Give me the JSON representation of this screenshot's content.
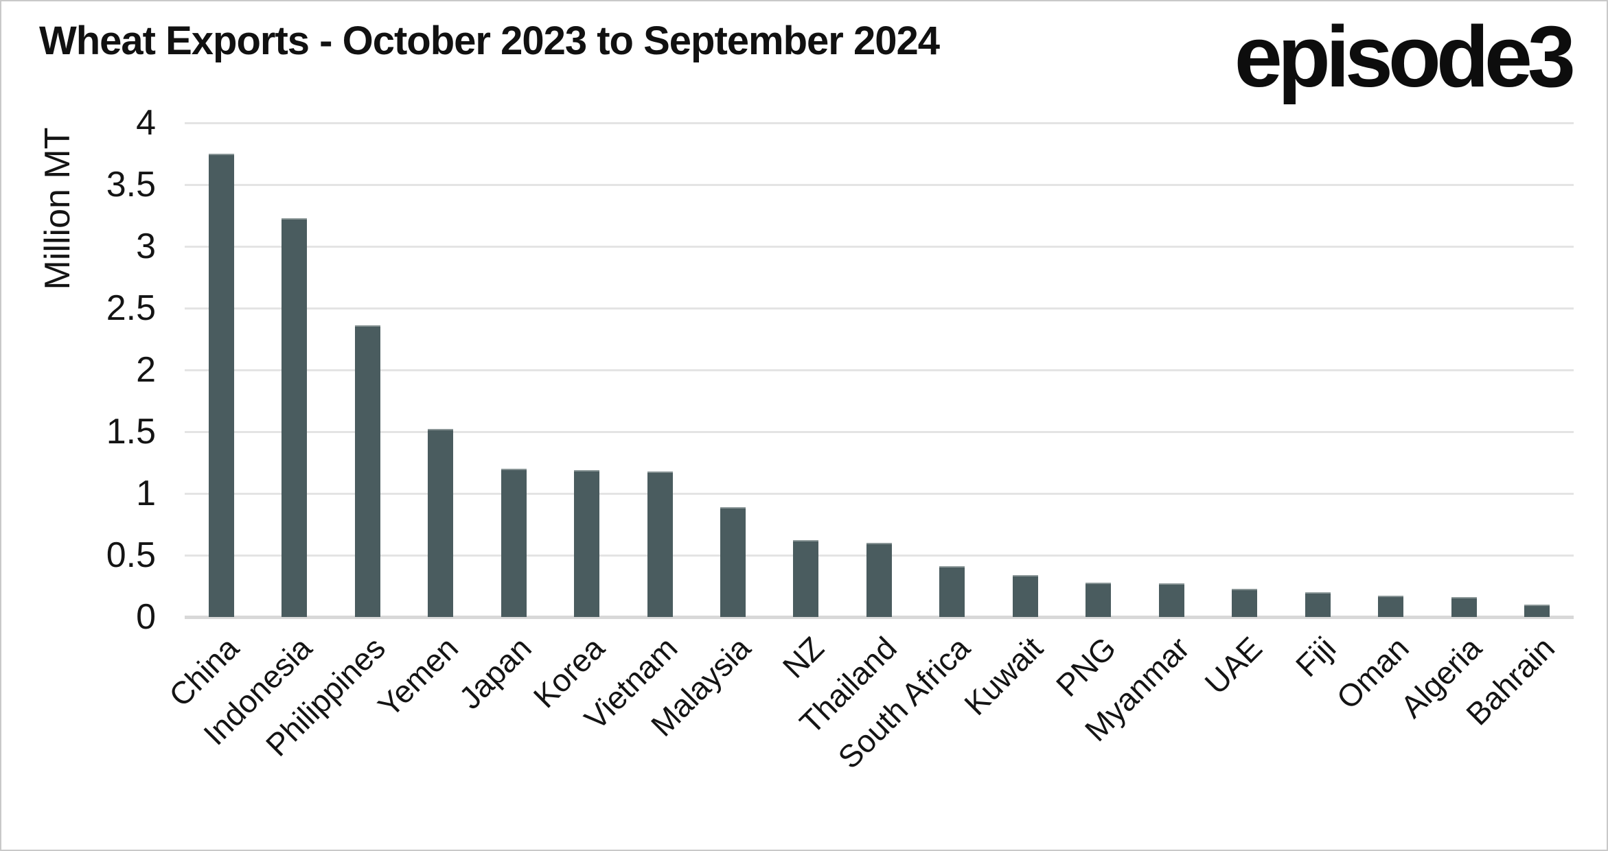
{
  "header": {
    "title": "Wheat Exports - October 2023 to September 2024",
    "logo_text": "episode3"
  },
  "chart_data": {
    "type": "bar",
    "title": "Wheat Exports - October 2023 to September 2024",
    "xlabel": "",
    "ylabel": "Million MT",
    "ylim": [
      0,
      4
    ],
    "ytick_step": 0.5,
    "yticks": [
      "4",
      "3.5",
      "3",
      "2.5",
      "2",
      "1.5",
      "1",
      "0.5",
      "0"
    ],
    "grid": "horizontal-only",
    "legend_position": "none",
    "categories": [
      "China",
      "Indonesia",
      "Philippines",
      "Yemen",
      "Japan",
      "Korea",
      "Vietnam",
      "Malaysia",
      "NZ",
      "Thailand",
      "South Africa",
      "Kuwait",
      "PNG",
      "Myanmar",
      "UAE",
      "Fiji",
      "Oman",
      "Algeria",
      "Bahrain"
    ],
    "values": [
      3.75,
      3.23,
      2.36,
      1.52,
      1.2,
      1.19,
      1.18,
      0.89,
      0.62,
      0.6,
      0.41,
      0.34,
      0.28,
      0.27,
      0.23,
      0.2,
      0.17,
      0.16,
      0.1
    ],
    "colors": {
      "bar": "#4a5c5f",
      "gridline": "#e4e4e4",
      "axis_line": "#d8d8d8",
      "text": "#141414",
      "frame_border": "#c9c9c9",
      "background": "#ffffff"
    }
  }
}
